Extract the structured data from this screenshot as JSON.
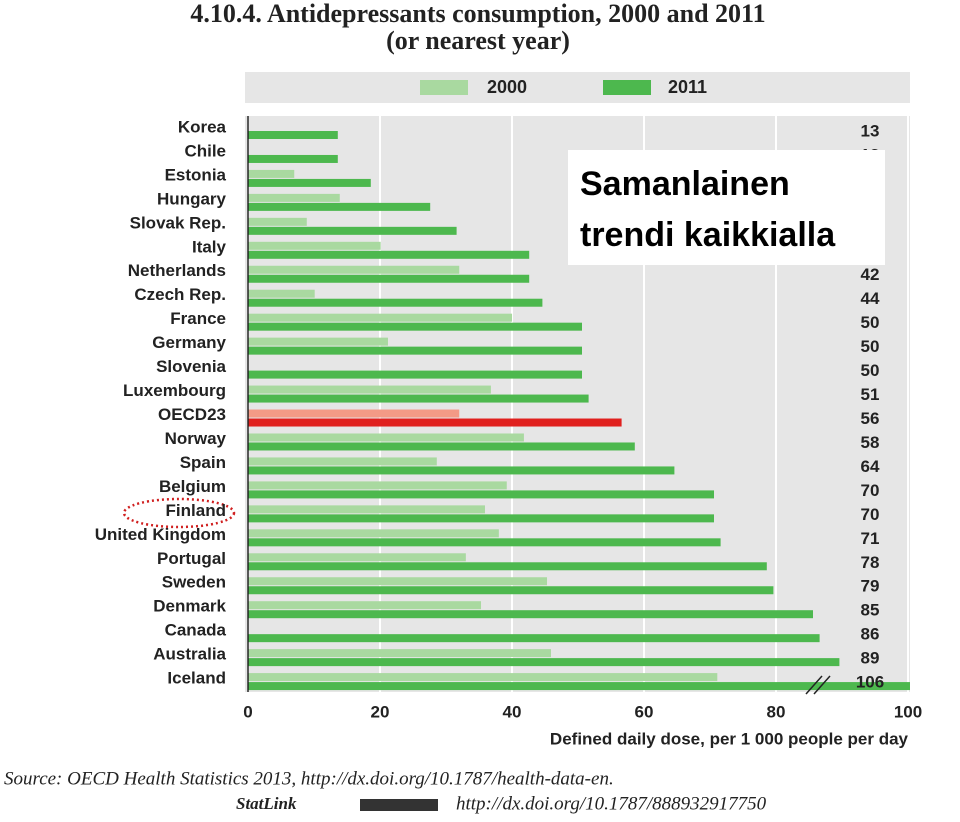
{
  "chart_data": {
    "type": "bar",
    "orientation": "horizontal",
    "title": "4.10.4. Antidepressants consumption, 2000 and 2011",
    "subtitle": "(or nearest year)",
    "categories": [
      "Korea",
      "Chile",
      "Estonia",
      "Hungary",
      "Slovak Rep.",
      "Italy",
      "Netherlands",
      "Czech Rep.",
      "France",
      "Germany",
      "Slovenia",
      "Luxembourg",
      "OECD23",
      "Norway",
      "Spain",
      "Belgium",
      "Finland",
      "United Kingdom",
      "Portugal",
      "Sweden",
      "Denmark",
      "Canada",
      "Australia",
      "Iceland"
    ],
    "series": [
      {
        "name": "2000",
        "color": "#a9d9a0",
        "highlight_color": "#f39a86",
        "values": [
          null,
          null,
          6.4,
          13.3,
          8.3,
          19.5,
          31.4,
          9.5,
          39.4,
          20.6,
          null,
          36.2,
          31.4,
          41.2,
          28,
          38.6,
          35.3,
          37.4,
          32.4,
          44.7,
          34.7,
          null,
          45.3,
          70.5
        ]
      },
      {
        "name": "2011",
        "color": "#4db84e",
        "highlight_color": "#e0201e",
        "values": [
          13,
          13,
          18,
          27,
          31,
          42,
          42,
          44,
          50,
          50,
          50,
          51,
          56,
          58,
          64,
          70,
          70,
          71,
          78,
          79,
          85,
          86,
          89,
          106
        ]
      }
    ],
    "highlight_category": "OECD23",
    "xlim": [
      0,
      100
    ],
    "xticks": [
      0,
      20,
      40,
      60,
      80,
      100
    ],
    "grid": true,
    "x_label": "Defined daily dose, per 1 000 people per day",
    "annotation": [
      "Samanlainen",
      "trendi kaikkialla"
    ],
    "source": "Source: OECD Health Statistics 2013, http://dx.doi.org/10.1787/health-data-en.",
    "statlink_label": "StatLink",
    "statlink": "http://dx.doi.org/10.1787/888932917750"
  }
}
